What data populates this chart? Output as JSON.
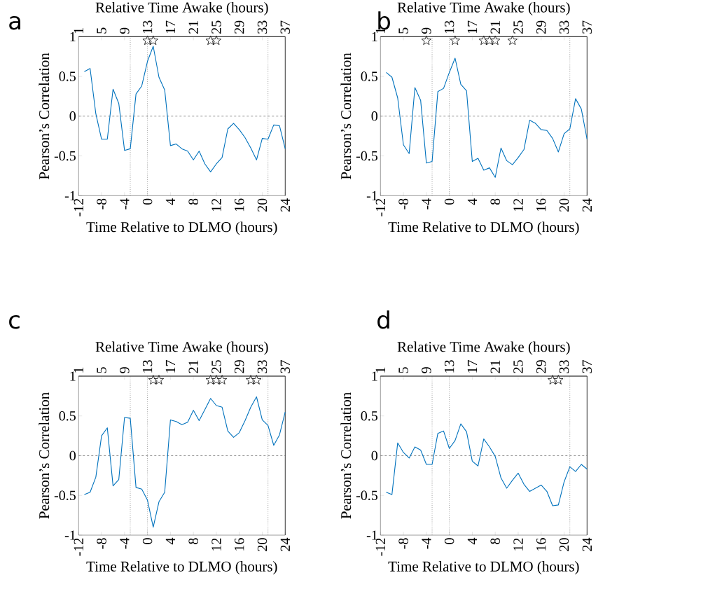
{
  "chart_data": [
    {
      "type": "line",
      "title": "a",
      "xlabel": "Time Relative to DLMO (hours)",
      "x2label": "Relative Time Awake (hours)",
      "ylabel": "Pearson’s Correlation",
      "xlim": [
        -12,
        24
      ],
      "xticks": [
        -12,
        -8,
        -4,
        0,
        4,
        8,
        12,
        16,
        20,
        24
      ],
      "x2lim": [
        1,
        37
      ],
      "x2ticks": [
        1,
        5,
        9,
        13,
        17,
        21,
        25,
        29,
        33,
        37
      ],
      "ylim": [
        -1,
        1
      ],
      "yticks": [
        -1,
        -0.5,
        0,
        0.5,
        1
      ],
      "x": [
        -11,
        -10,
        -9,
        -8,
        -7,
        -6,
        -5,
        -4,
        -3,
        -2,
        -1,
        0,
        1,
        2,
        3,
        4,
        5,
        6,
        7,
        8,
        9,
        10,
        11,
        12,
        13,
        14,
        15,
        16,
        17,
        18,
        19,
        20,
        21,
        22,
        23,
        24
      ],
      "series": [
        {
          "color": "#0072bd",
          "values": [
            0.56,
            0.6,
            0.03,
            -0.29,
            -0.29,
            0.34,
            0.16,
            -0.43,
            -0.41,
            0.28,
            0.38,
            0.69,
            0.88,
            0.49,
            0.33,
            -0.37,
            -0.35,
            -0.41,
            -0.44,
            -0.55,
            -0.44,
            -0.6,
            -0.7,
            -0.6,
            -0.52,
            -0.16,
            -0.09,
            -0.17,
            -0.27,
            -0.4,
            -0.55,
            -0.28,
            -0.29,
            -0.11,
            -0.12,
            -0.41
          ]
        },
        {
          "type": "scatter",
          "marker": "star",
          "color": "#000000",
          "x": [
            0,
            1,
            11,
            12
          ],
          "values": [
            0.95,
            0.95,
            0.95,
            0.95
          ]
        }
      ],
      "ref_lines": [
        {
          "axis": "y",
          "value": 0,
          "line_style": "dashed",
          "color": "#808080"
        },
        {
          "axis": "x",
          "value": -3,
          "line_style": "dotted",
          "color": "#707070"
        },
        {
          "axis": "x",
          "value": 0,
          "line_style": "dotted",
          "color": "#707070"
        },
        {
          "axis": "x",
          "value": 21,
          "line_style": "dotted",
          "color": "#707070"
        }
      ]
    },
    {
      "type": "line",
      "title": "b",
      "xlabel": "Time Relative to DLMO (hours)",
      "x2label": "Relative Time Awake (hours)",
      "ylabel": "Pearson’s Correlation",
      "xlim": [
        -12,
        24
      ],
      "xticks": [
        -12,
        -8,
        -4,
        0,
        4,
        8,
        12,
        16,
        20,
        24
      ],
      "x2lim": [
        1,
        37
      ],
      "x2ticks": [
        1,
        5,
        9,
        13,
        17,
        21,
        25,
        29,
        33,
        37
      ],
      "ylim": [
        -1,
        1
      ],
      "yticks": [
        -1,
        -0.5,
        0,
        0.5,
        1
      ],
      "x": [
        -11,
        -10,
        -9,
        -8,
        -7,
        -6,
        -5,
        -4,
        -3,
        -2,
        -1,
        0,
        1,
        2,
        3,
        4,
        5,
        6,
        7,
        8,
        9,
        10,
        11,
        12,
        13,
        14,
        15,
        16,
        17,
        18,
        19,
        20,
        21,
        22,
        23,
        24
      ],
      "series": [
        {
          "color": "#0072bd",
          "values": [
            0.55,
            0.49,
            0.23,
            -0.36,
            -0.47,
            0.36,
            0.2,
            -0.59,
            -0.57,
            0.31,
            0.35,
            0.55,
            0.73,
            0.4,
            0.32,
            -0.57,
            -0.53,
            -0.68,
            -0.65,
            -0.77,
            -0.4,
            -0.56,
            -0.61,
            -0.52,
            -0.42,
            -0.05,
            -0.09,
            -0.17,
            -0.18,
            -0.28,
            -0.45,
            -0.22,
            -0.16,
            0.22,
            0.09,
            -0.29
          ]
        },
        {
          "type": "scatter",
          "marker": "star",
          "color": "#000000",
          "x": [
            -4,
            1,
            6,
            7,
            8,
            11
          ],
          "values": [
            0.95,
            0.95,
            0.95,
            0.95,
            0.95,
            0.95
          ]
        }
      ],
      "ref_lines": [
        {
          "axis": "y",
          "value": 0,
          "line_style": "dashed",
          "color": "#808080"
        },
        {
          "axis": "x",
          "value": -3,
          "line_style": "dotted",
          "color": "#707070"
        },
        {
          "axis": "x",
          "value": 0,
          "line_style": "dotted",
          "color": "#707070"
        },
        {
          "axis": "x",
          "value": 21,
          "line_style": "dotted",
          "color": "#707070"
        }
      ]
    },
    {
      "type": "line",
      "title": "c",
      "xlabel": "Time Relative to DLMO (hours)",
      "x2label": "Relative Time Awake (hours)",
      "ylabel": "Pearson’s Correlation",
      "xlim": [
        -12,
        24
      ],
      "xticks": [
        -12,
        -8,
        -4,
        0,
        4,
        8,
        12,
        16,
        20,
        24
      ],
      "x2lim": [
        1,
        37
      ],
      "x2ticks": [
        1,
        5,
        9,
        13,
        17,
        21,
        25,
        29,
        33,
        37
      ],
      "ylim": [
        -1,
        1
      ],
      "yticks": [
        -1,
        -0.5,
        0,
        0.5,
        1
      ],
      "x": [
        -11,
        -10,
        -9,
        -8,
        -7,
        -6,
        -5,
        -4,
        -3,
        -2,
        -1,
        0,
        1,
        2,
        3,
        4,
        5,
        6,
        7,
        8,
        9,
        10,
        11,
        12,
        13,
        14,
        15,
        16,
        17,
        18,
        19,
        20,
        21,
        22,
        23,
        24
      ],
      "series": [
        {
          "color": "#0072bd",
          "values": [
            -0.49,
            -0.46,
            -0.27,
            0.25,
            0.35,
            -0.38,
            -0.3,
            0.48,
            0.47,
            -0.4,
            -0.42,
            -0.56,
            -0.9,
            -0.58,
            -0.46,
            0.45,
            0.43,
            0.39,
            0.42,
            0.57,
            0.44,
            0.58,
            0.72,
            0.63,
            0.61,
            0.31,
            0.23,
            0.29,
            0.44,
            0.61,
            0.74,
            0.45,
            0.38,
            0.13,
            0.26,
            0.55
          ]
        },
        {
          "type": "scatter",
          "marker": "star",
          "color": "#000000",
          "x": [
            1,
            2,
            11,
            12,
            13,
            18,
            19
          ],
          "values": [
            0.95,
            0.95,
            0.95,
            0.95,
            0.95,
            0.95,
            0.95
          ]
        }
      ],
      "ref_lines": [
        {
          "axis": "y",
          "value": 0,
          "line_style": "dashed",
          "color": "#808080"
        },
        {
          "axis": "x",
          "value": -3,
          "line_style": "dotted",
          "color": "#707070"
        },
        {
          "axis": "x",
          "value": 0,
          "line_style": "dotted",
          "color": "#707070"
        },
        {
          "axis": "x",
          "value": 21,
          "line_style": "dotted",
          "color": "#707070"
        }
      ]
    },
    {
      "type": "line",
      "title": "d",
      "xlabel": "Time Relative to DLMO (hours)",
      "x2label": "Relative Time Awake (hours)",
      "ylabel": "Pearson’s Correlation",
      "xlim": [
        -12,
        24
      ],
      "xticks": [
        -12,
        -8,
        -4,
        0,
        4,
        8,
        12,
        16,
        20,
        24
      ],
      "x2lim": [
        1,
        37
      ],
      "x2ticks": [
        1,
        5,
        9,
        13,
        17,
        21,
        25,
        29,
        33,
        37
      ],
      "ylim": [
        -1,
        1
      ],
      "yticks": [
        -1,
        -0.5,
        0,
        0.5,
        1
      ],
      "x": [
        -11,
        -10,
        -9,
        -8,
        -7,
        -6,
        -5,
        -4,
        -3,
        -2,
        -1,
        0,
        1,
        2,
        3,
        4,
        5,
        6,
        7,
        8,
        9,
        10,
        11,
        12,
        13,
        14,
        15,
        16,
        17,
        18,
        19,
        20,
        21,
        22,
        23,
        24
      ],
      "series": [
        {
          "color": "#0072bd",
          "values": [
            -0.46,
            -0.49,
            0.16,
            0.04,
            -0.03,
            0.11,
            0.07,
            -0.11,
            -0.11,
            0.28,
            0.31,
            0.09,
            0.19,
            0.4,
            0.3,
            -0.07,
            -0.13,
            0.21,
            0.11,
            -0.01,
            -0.28,
            -0.41,
            -0.31,
            -0.22,
            -0.36,
            -0.45,
            -0.41,
            -0.37,
            -0.45,
            -0.63,
            -0.62,
            -0.33,
            -0.14,
            -0.2,
            -0.11,
            -0.17
          ]
        },
        {
          "type": "scatter",
          "marker": "star",
          "color": "#000000",
          "x": [
            18,
            19
          ],
          "values": [
            0.95,
            0.95
          ]
        }
      ],
      "ref_lines": [
        {
          "axis": "y",
          "value": 0,
          "line_style": "dashed",
          "color": "#808080"
        },
        {
          "axis": "x",
          "value": -3,
          "line_style": "dotted",
          "color": "#707070"
        },
        {
          "axis": "x",
          "value": 0,
          "line_style": "dotted",
          "color": "#707070"
        },
        {
          "axis": "x",
          "value": 21,
          "line_style": "dotted",
          "color": "#707070"
        }
      ]
    }
  ]
}
